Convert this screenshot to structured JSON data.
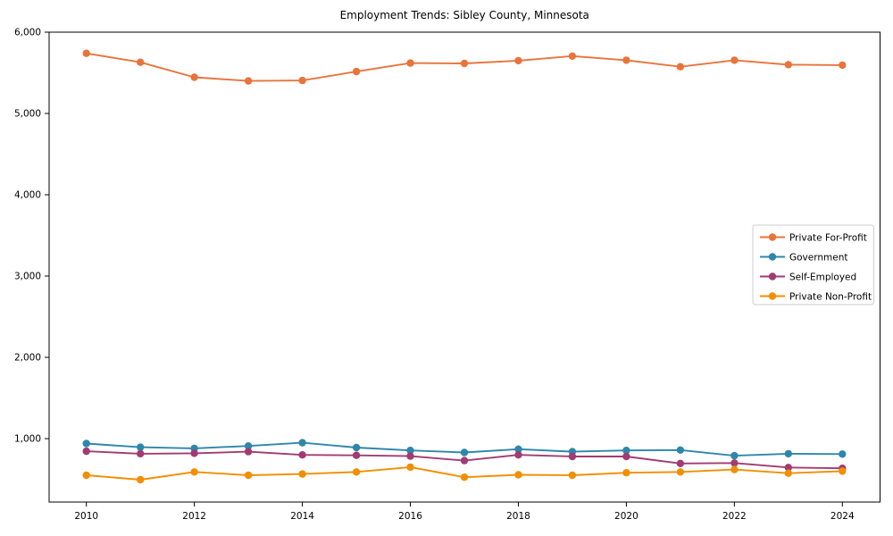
{
  "title": "Employment Trends: Sibley County, Minnesota",
  "chart_data": {
    "type": "line",
    "title": "Employment Trends: Sibley County, Minnesota",
    "x": [
      2010,
      2011,
      2012,
      2013,
      2014,
      2015,
      2016,
      2017,
      2018,
      2019,
      2020,
      2021,
      2022,
      2023,
      2024
    ],
    "x_tick_labels": [
      "2010",
      "2012",
      "2014",
      "2016",
      "2018",
      "2020",
      "2022",
      "2024"
    ],
    "x_tick_years": [
      2010,
      2012,
      2014,
      2016,
      2018,
      2020,
      2022,
      2024
    ],
    "y_ticks": [
      1000,
      2000,
      3000,
      4000,
      5000,
      6000
    ],
    "y_tick_labels": [
      "1,000",
      "2,000",
      "3,000",
      "4,000",
      "5,000",
      "6,000"
    ],
    "ylim": [
      220,
      6000
    ],
    "grid": false,
    "legend_position": "center-right",
    "axis_color": "#000000",
    "series": [
      {
        "name": "Private For-Profit",
        "color": "#e8743b",
        "values": [
          5740,
          5630,
          5445,
          5400,
          5405,
          5515,
          5620,
          5615,
          5650,
          5705,
          5655,
          5575,
          5655,
          5600,
          5595
        ]
      },
      {
        "name": "Government",
        "color": "#2e86ab",
        "values": [
          940,
          895,
          880,
          910,
          950,
          890,
          855,
          830,
          870,
          840,
          855,
          860,
          790,
          815,
          810
        ]
      },
      {
        "name": "Self-Employed",
        "color": "#a23b72",
        "values": [
          845,
          815,
          820,
          840,
          800,
          795,
          785,
          730,
          800,
          780,
          780,
          695,
          700,
          645,
          635
        ]
      },
      {
        "name": "Private Non-Profit",
        "color": "#f18f01",
        "values": [
          550,
          495,
          590,
          550,
          565,
          590,
          650,
          525,
          555,
          550,
          580,
          590,
          620,
          575,
          600
        ]
      }
    ]
  }
}
